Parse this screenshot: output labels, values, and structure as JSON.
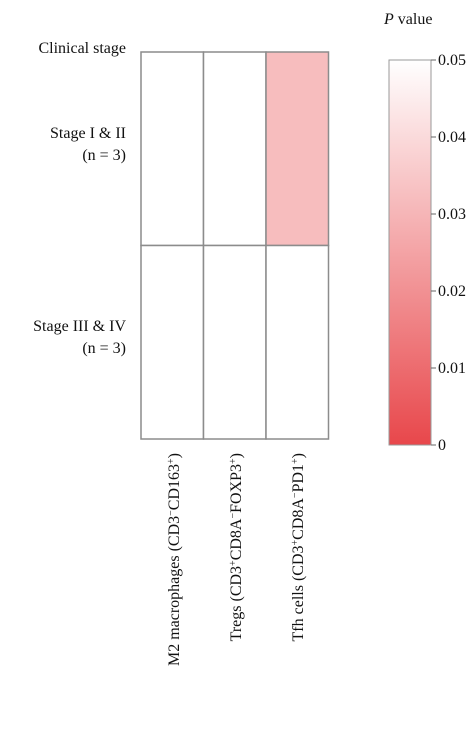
{
  "chart_data": {
    "type": "heatmap",
    "row_axis_title": "Clinical stage",
    "rows": [
      {
        "label_line1": "Stage I & II",
        "label_line2": "(n = 3)"
      },
      {
        "label_line1": "Stage III & IV",
        "label_line2": "(n = 3)"
      }
    ],
    "columns": [
      {
        "prefix": "M2 macrophages (CD3",
        "sup1": "−",
        "mid": "CD163",
        "sup2": "+",
        "suffix": ")"
      },
      {
        "prefix": "Tregs (CD3",
        "sup1": "+",
        "mid": "CD8A",
        "sup2": "−",
        "mid2": "FOXP3",
        "sup3": "+",
        "suffix": ")"
      },
      {
        "prefix": "Tfh cells (CD3",
        "sup1": "+",
        "mid": "CD8A",
        "sup2": "−",
        "mid2": "PD1",
        "sup3": "+",
        "suffix": ")"
      }
    ],
    "values": [
      [
        0.05,
        0.05,
        0.032
      ],
      [
        0.05,
        0.05,
        0.05
      ]
    ],
    "colorbar": {
      "title_italic": "P",
      "title_rest": " value",
      "min": 0,
      "max": 0.05,
      "ticks": [
        "0",
        "0.01",
        "0.02",
        "0.03",
        "0.04",
        "0.05"
      ],
      "color_low": "#e8474b",
      "color_high": "#ffffff"
    }
  }
}
